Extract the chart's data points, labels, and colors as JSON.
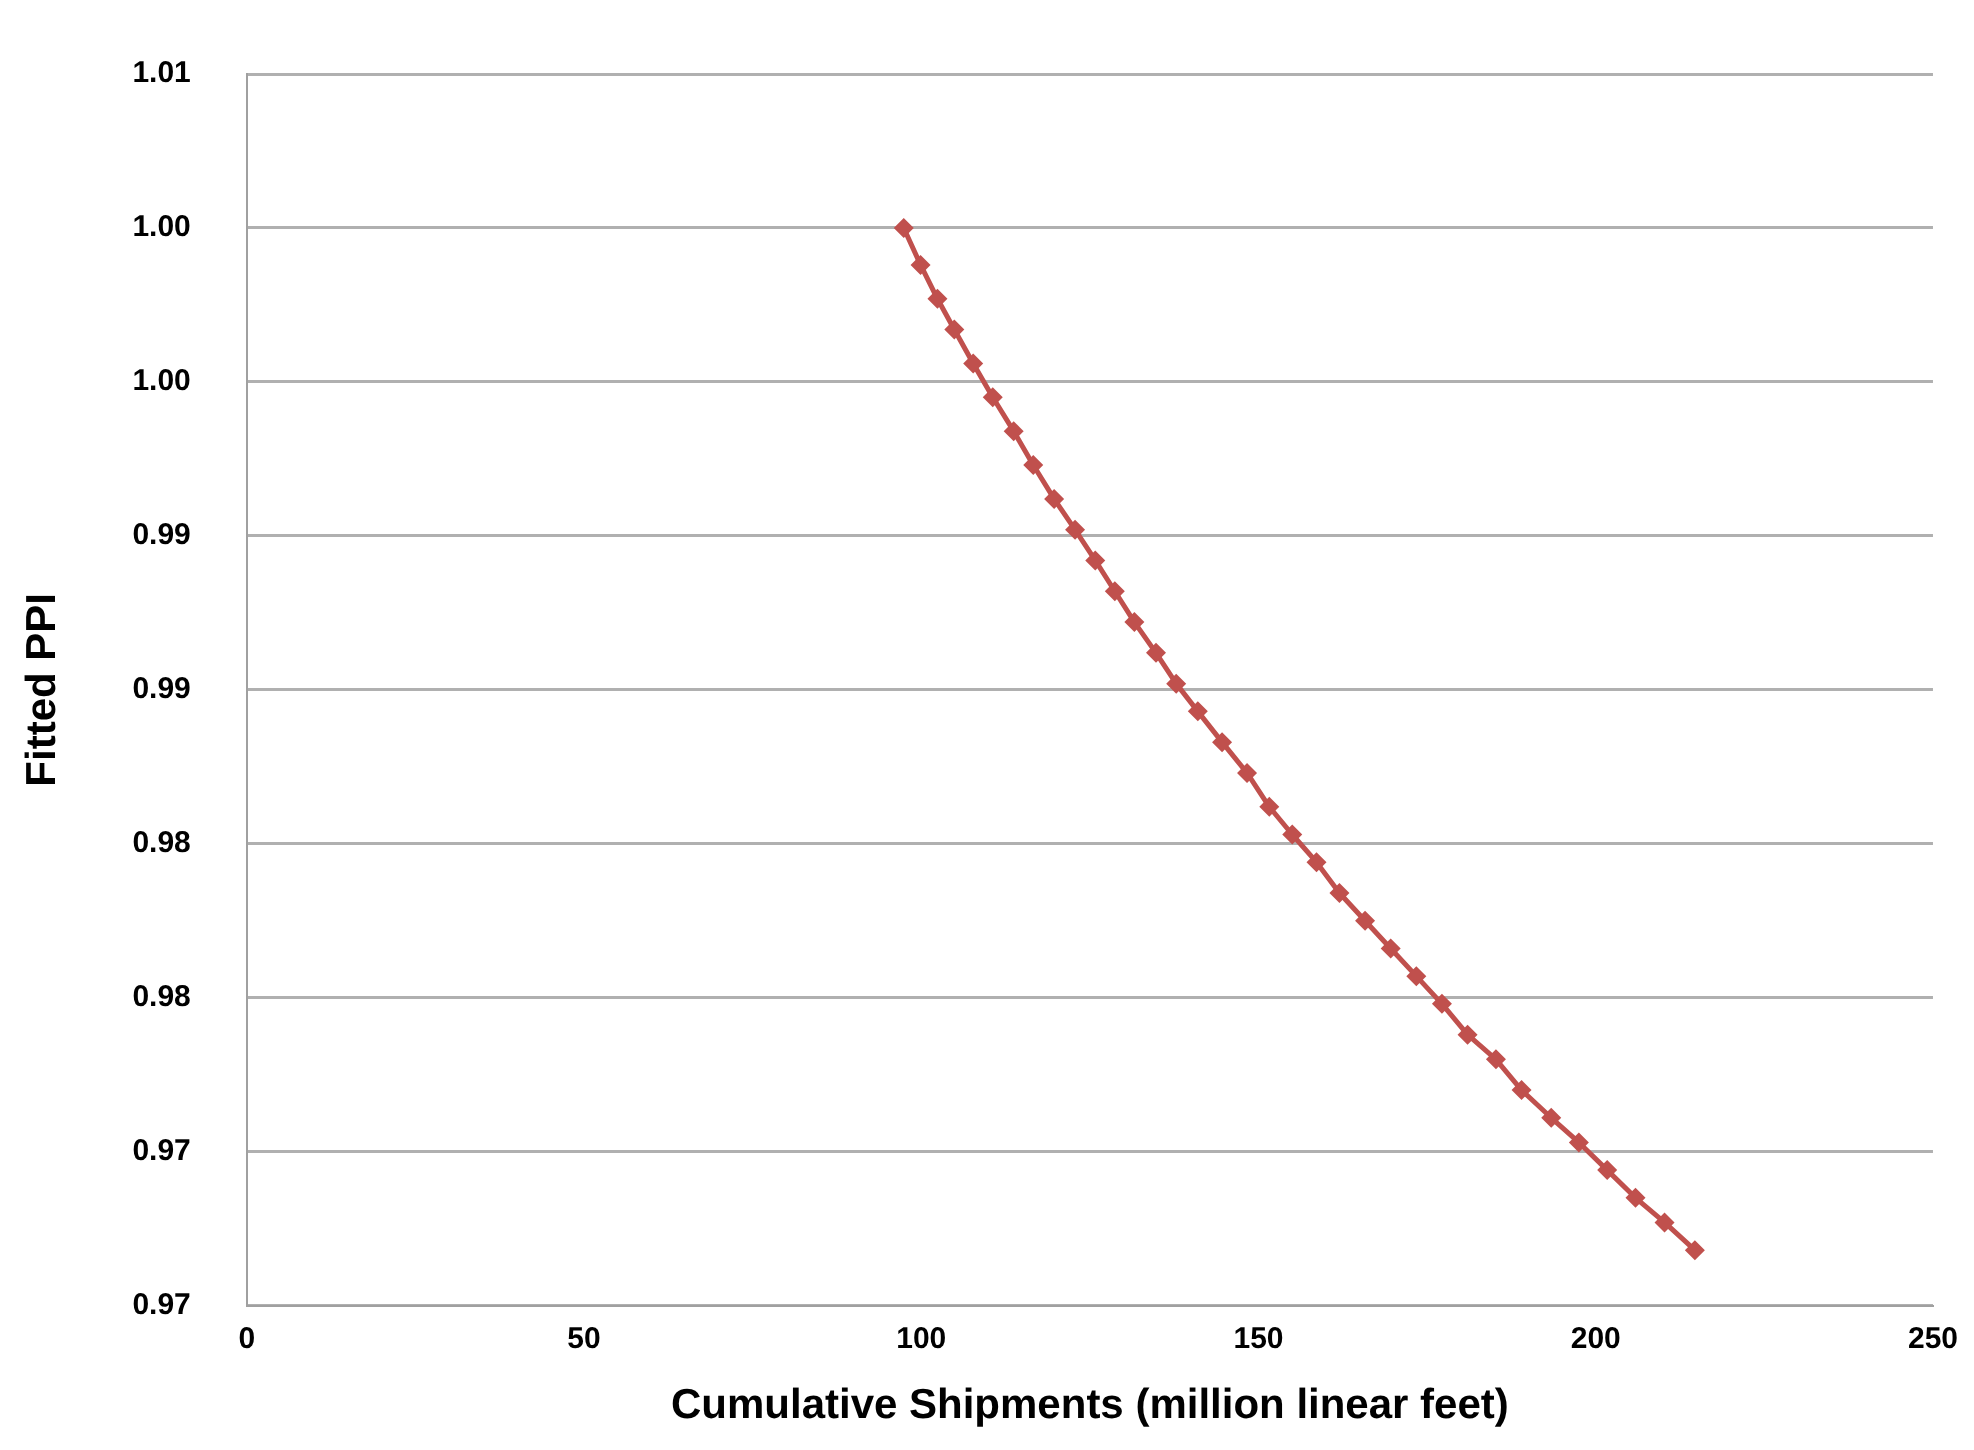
{
  "chart_data": {
    "type": "line",
    "xlabel": "Cumulative Shipments (million linear feet)",
    "ylabel": "Fitted PPI",
    "x": [
      97.4,
      99.9,
      102.4,
      104.9,
      107.7,
      110.6,
      113.7,
      116.6,
      119.7,
      122.8,
      125.8,
      128.7,
      131.6,
      134.8,
      137.8,
      141.0,
      144.6,
      148.3,
      151.6,
      155.0,
      158.6,
      162.0,
      165.8,
      169.6,
      173.4,
      177.2,
      181.0,
      185.2,
      189.0,
      193.4,
      197.5,
      201.7,
      205.9,
      210.2,
      214.7
    ],
    "series": [
      {
        "color": "#c0504d",
        "values": [
          1.0,
          0.9988,
          0.9977,
          0.9967,
          0.9956,
          0.9945,
          0.9934,
          0.9923,
          0.9912,
          0.9902,
          0.9892,
          0.9882,
          0.9872,
          0.9862,
          0.9852,
          0.9843,
          0.9833,
          0.9823,
          0.9812,
          0.9803,
          0.9794,
          0.9784,
          0.9775,
          0.9766,
          0.9757,
          0.9748,
          0.9738,
          0.973,
          0.972,
          0.9711,
          0.9703,
          0.9694,
          0.9685,
          0.9677,
          0.9668
        ]
      }
    ],
    "xlim": [
      0,
      250
    ],
    "xticks": [
      0,
      50,
      100,
      150,
      200,
      250
    ],
    "ylim": [
      0.965,
      1.005
    ],
    "yticks": [
      {
        "value": 0.965,
        "label": "0.97"
      },
      {
        "value": 0.97,
        "label": "0.97"
      },
      {
        "value": 0.975,
        "label": "0.98"
      },
      {
        "value": 0.98,
        "label": "0.98"
      },
      {
        "value": 0.985,
        "label": "0.99"
      },
      {
        "value": 0.99,
        "label": "0.99"
      },
      {
        "value": 0.995,
        "label": "1.00"
      },
      {
        "value": 1.0,
        "label": "1.00"
      },
      {
        "value": 1.005,
        "label": "1.01"
      }
    ],
    "grid": "y",
    "legend": false,
    "marker": "diamond",
    "line_style": "solid"
  }
}
